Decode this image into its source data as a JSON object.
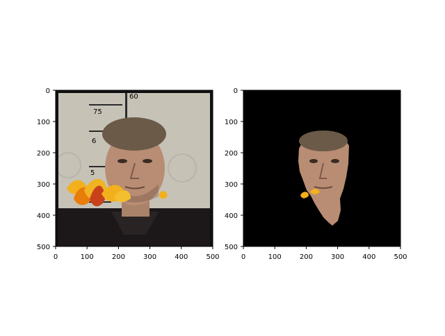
{
  "chart_data": [
    {
      "type": "image",
      "panel": "left",
      "content": "face photo with autumn leaves overlay",
      "xlim": [
        0,
        500
      ],
      "ylim": [
        500,
        0
      ],
      "x_ticks": [
        0,
        100,
        200,
        300,
        400,
        500
      ],
      "y_ticks": [
        0,
        100,
        200,
        300,
        400,
        500
      ],
      "x_tick_labels": [
        "0",
        "100",
        "200",
        "300",
        "400",
        "500"
      ],
      "y_tick_labels": [
        "0",
        "100",
        "200",
        "300",
        "400",
        "500"
      ],
      "colors": {
        "background_wall": "#cfcabe",
        "frame": "#111111",
        "skin": "#b88d74",
        "hair": "#6b5a48",
        "shirt": "#1c1718",
        "leaf_yellow": "#f2b01c",
        "leaf_orange": "#e87d0b",
        "leaf_red": "#c7421a"
      }
    },
    {
      "type": "image",
      "panel": "right",
      "content": "segmented face on black background",
      "xlim": [
        0,
        500
      ],
      "ylim": [
        500,
        0
      ],
      "x_ticks": [
        0,
        100,
        200,
        300,
        400,
        500
      ],
      "y_ticks": [
        0,
        100,
        200,
        300,
        400,
        500
      ],
      "x_tick_labels": [
        "0",
        "100",
        "200",
        "300",
        "400",
        "500"
      ],
      "y_tick_labels": [
        "0",
        "100",
        "200",
        "300",
        "400",
        "500"
      ],
      "colors": {
        "background": "#000000",
        "skin": "#b88d74",
        "hair": "#6b5a48",
        "leaf_yellow": "#f2b01c"
      }
    }
  ],
  "left_panel": {
    "wall_text": {
      "t1": "75",
      "t2": "60",
      "t3": "6",
      "t4": "5",
      "t5": "75"
    }
  }
}
